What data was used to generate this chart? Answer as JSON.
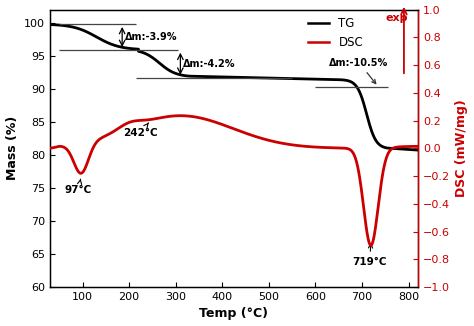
{
  "xlabel": "Temp (°C)",
  "ylabel_left": "Mass (%)",
  "ylabel_right": "DSC (mW/mg)",
  "xlim": [
    30,
    820
  ],
  "ylim_left": [
    60,
    102
  ],
  "ylim_right": [
    -1.0,
    1.0
  ],
  "tg_color": "#000000",
  "dsc_color": "#cc0000",
  "delta_m1": "Δm:-3.9%",
  "delta_m2": "Δm:-4.2%",
  "delta_m3": "Δm:-10.5%",
  "exp_text": "exp",
  "legend_tg": "TG",
  "legend_dsc": "DSC",
  "xticks": [
    100,
    200,
    300,
    400,
    500,
    600,
    700,
    800
  ],
  "yticks_left": [
    60,
    65,
    70,
    75,
    80,
    85,
    90,
    95,
    100
  ],
  "yticks_right": [
    -1.0,
    -0.8,
    -0.6,
    -0.4,
    -0.2,
    0.0,
    0.2,
    0.4,
    0.6,
    0.8,
    1.0
  ],
  "ann_97": "97°C",
  "ann_242": "242°C",
  "ann_719": "719°C"
}
